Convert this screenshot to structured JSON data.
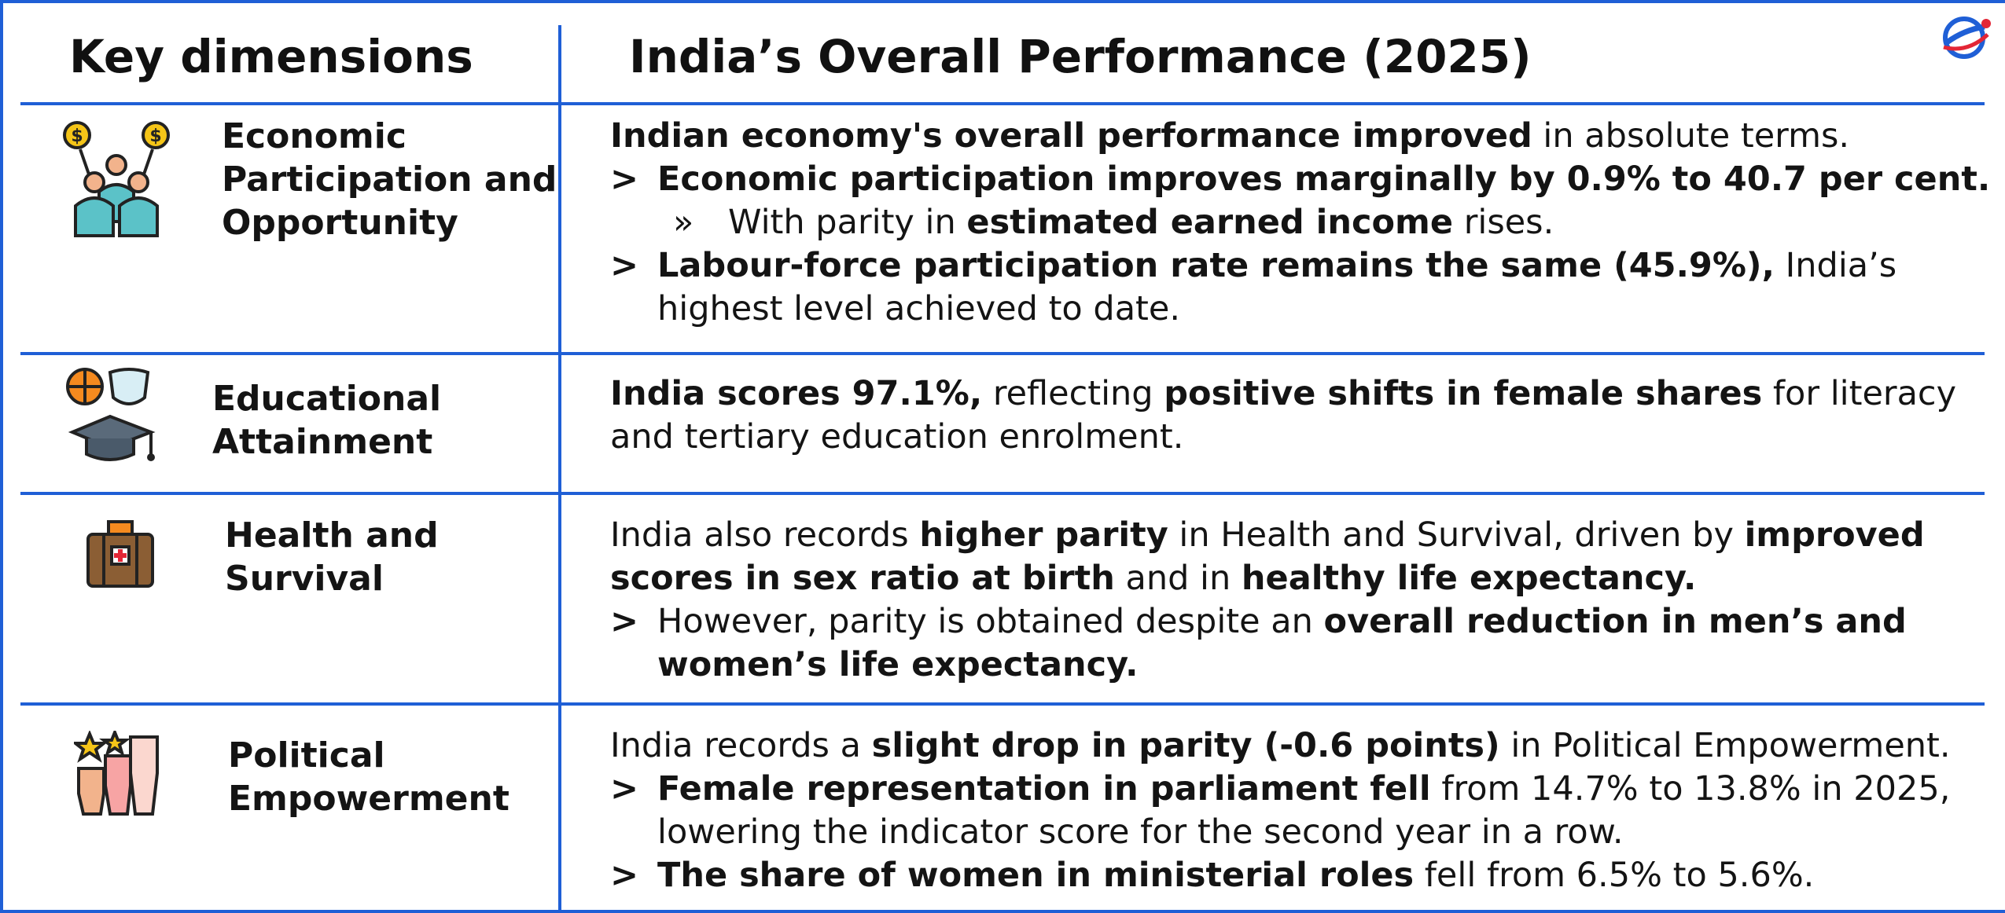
{
  "headers": {
    "col1": "Key dimensions",
    "col2": "India’s Overall Performance (2025)"
  },
  "rows": [
    {
      "dimension": [
        "Economic",
        "Participation and",
        "Opportunity"
      ],
      "icon": "people-coins-icon",
      "lines": [
        {
          "bullet": "",
          "bold": "Indian economy's overall performance improved",
          "rest": " in absolute terms."
        },
        {
          "bullet": ">",
          "bold": "Economic participation improves marginally by 0.9% to 40.7 per cent.",
          "rest": ""
        },
        {
          "bullet": "»",
          "pre": "With parity in ",
          "bold": "estimated earned income",
          "rest": " rises."
        },
        {
          "bullet": ">",
          "bold": "Labour-force participation rate remains the same (45.9%),",
          "rest": " India’s"
        },
        {
          "bullet": "",
          "pre": "highest level achieved to date."
        }
      ]
    },
    {
      "dimension": [
        "Educational",
        "Attainment"
      ],
      "icon": "education-icon",
      "lines": [
        {
          "bold": "India scores 97.1%,",
          "mid": " reflecting ",
          "bold2": "positive shifts in female shares",
          "rest": " for literacy"
        },
        {
          "pre": "and tertiary education enrolment."
        }
      ]
    },
    {
      "dimension": [
        "Health and",
        "Survival"
      ],
      "icon": "medical-kit-icon",
      "lines": [
        {
          "pre": "India also records ",
          "bold": "higher parity",
          "mid": " in Health and Survival, driven by ",
          "bold2": "improved"
        },
        {
          "bold": "scores in sex ratio at birth",
          "mid": " and in ",
          "bold2": "healthy life expectancy."
        },
        {
          "bullet": ">",
          "pre": "However, parity is obtained despite an ",
          "bold": "overall reduction in men’s and"
        },
        {
          "bold": "women’s life expectancy."
        }
      ]
    },
    {
      "dimension": [
        "Political",
        "Empowerment"
      ],
      "icon": "raised-fists-icon",
      "lines": [
        {
          "pre": "India records a ",
          "bold": "slight drop in parity (-0.6 points)",
          "rest": " in Political Empowerment."
        },
        {
          "bullet": ">",
          "bold": "Female representation in parliament fell",
          "rest": " from 14.7% to 13.8% in 2025,"
        },
        {
          "pre": "lowering the indicator score for the second year in a row."
        },
        {
          "bullet": ">",
          "bold": "The share of women in ministerial roles",
          "rest": " fell from 6.5% to 5.6%."
        }
      ]
    }
  ],
  "colors": {
    "accent": "#1f5fd6",
    "logo_red": "#e32636"
  }
}
